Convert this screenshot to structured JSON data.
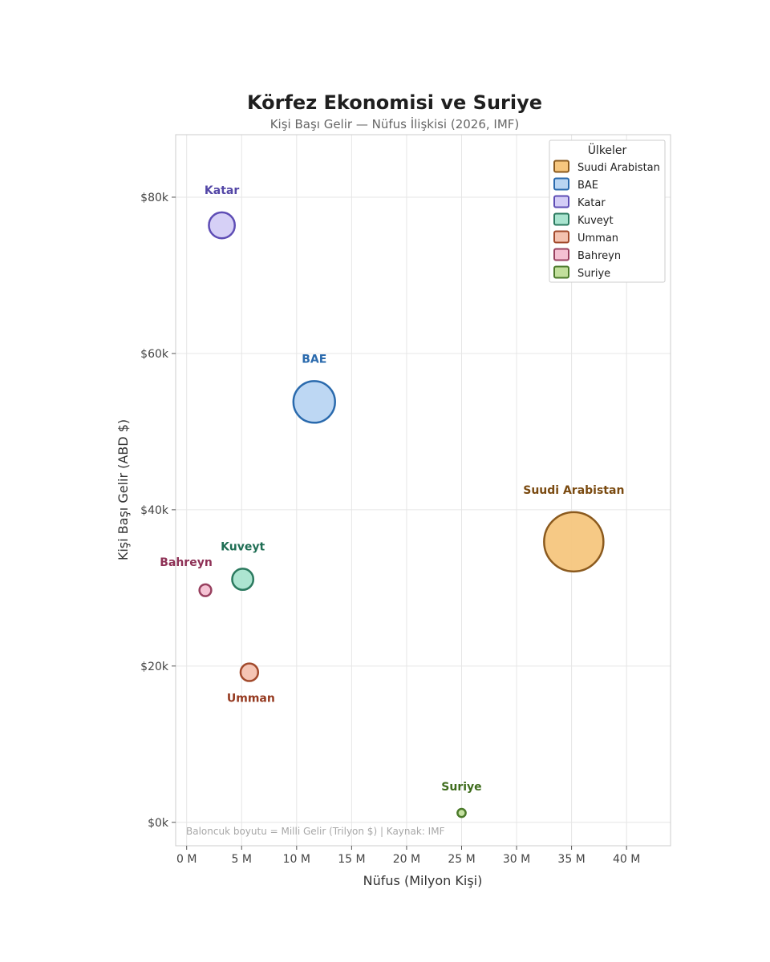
{
  "chart_data": {
    "type": "scatter",
    "title": "Körfez Ekonomisi ve Suriye",
    "subtitle": "Kişi Başı Gelir — Nüfus İlişkisi (2026, IMF)",
    "xlabel": "Nüfus (Milyon Kişi)",
    "ylabel": "Kişi Başı Gelir (ABD $)",
    "xlim": [
      -1,
      44
    ],
    "ylim": [
      -3000,
      88000
    ],
    "x_ticks": [
      0,
      5,
      10,
      15,
      20,
      25,
      30,
      35,
      40
    ],
    "x_tick_labels": [
      "0 M",
      "5 M",
      "10 M",
      "15 M",
      "20 M",
      "25 M",
      "30 M",
      "35 M",
      "40 M"
    ],
    "y_ticks": [
      0,
      20000,
      40000,
      60000,
      80000
    ],
    "y_tick_labels": [
      "$0k",
      "$20k",
      "$40k",
      "$60k",
      "$80k"
    ],
    "grid": true,
    "legend": {
      "title": "Ülkeler",
      "position": "top-right"
    },
    "note": "Baloncuk boyutu = Milli Gelir (Trilyon $)  |  Kaynak: IMF",
    "series": [
      {
        "name": "Suudi Arabistan",
        "x": 35.2,
        "y": 35900,
        "size": 1.26,
        "fill": "#f6c67e",
        "stroke": "#8b5a1e",
        "label_color": "#7a4a10",
        "label_pos": "above"
      },
      {
        "name": "BAE",
        "x": 11.6,
        "y": 53800,
        "size": 0.62,
        "fill": "#b9d5f2",
        "stroke": "#2a6aad",
        "label_color": "#2a6aad",
        "label_pos": "above"
      },
      {
        "name": "Katar",
        "x": 3.2,
        "y": 76400,
        "size": 0.24,
        "fill": "#d4cdf6",
        "stroke": "#5e4db5",
        "label_color": "#5346a6",
        "label_pos": "above"
      },
      {
        "name": "Kuveyt",
        "x": 5.1,
        "y": 31100,
        "size": 0.16,
        "fill": "#a9e4cf",
        "stroke": "#2b7a5f",
        "label_color": "#1f6e54",
        "label_pos": "above"
      },
      {
        "name": "Umman",
        "x": 5.7,
        "y": 19200,
        "size": 0.11,
        "fill": "#f4c2b0",
        "stroke": "#a24a2c",
        "label_color": "#95391f",
        "label_pos": "below"
      },
      {
        "name": "Bahreyn",
        "x": 1.7,
        "y": 29700,
        "size": 0.05,
        "fill": "#f4c0d2",
        "stroke": "#98405f",
        "label_color": "#8e3156",
        "label_pos": "above-left"
      },
      {
        "name": "Suriye",
        "x": 25.0,
        "y": 1200,
        "size": 0.024,
        "fill": "#c2df9c",
        "stroke": "#4b7a2a",
        "label_color": "#3e6c1c",
        "label_pos": "above"
      }
    ]
  }
}
